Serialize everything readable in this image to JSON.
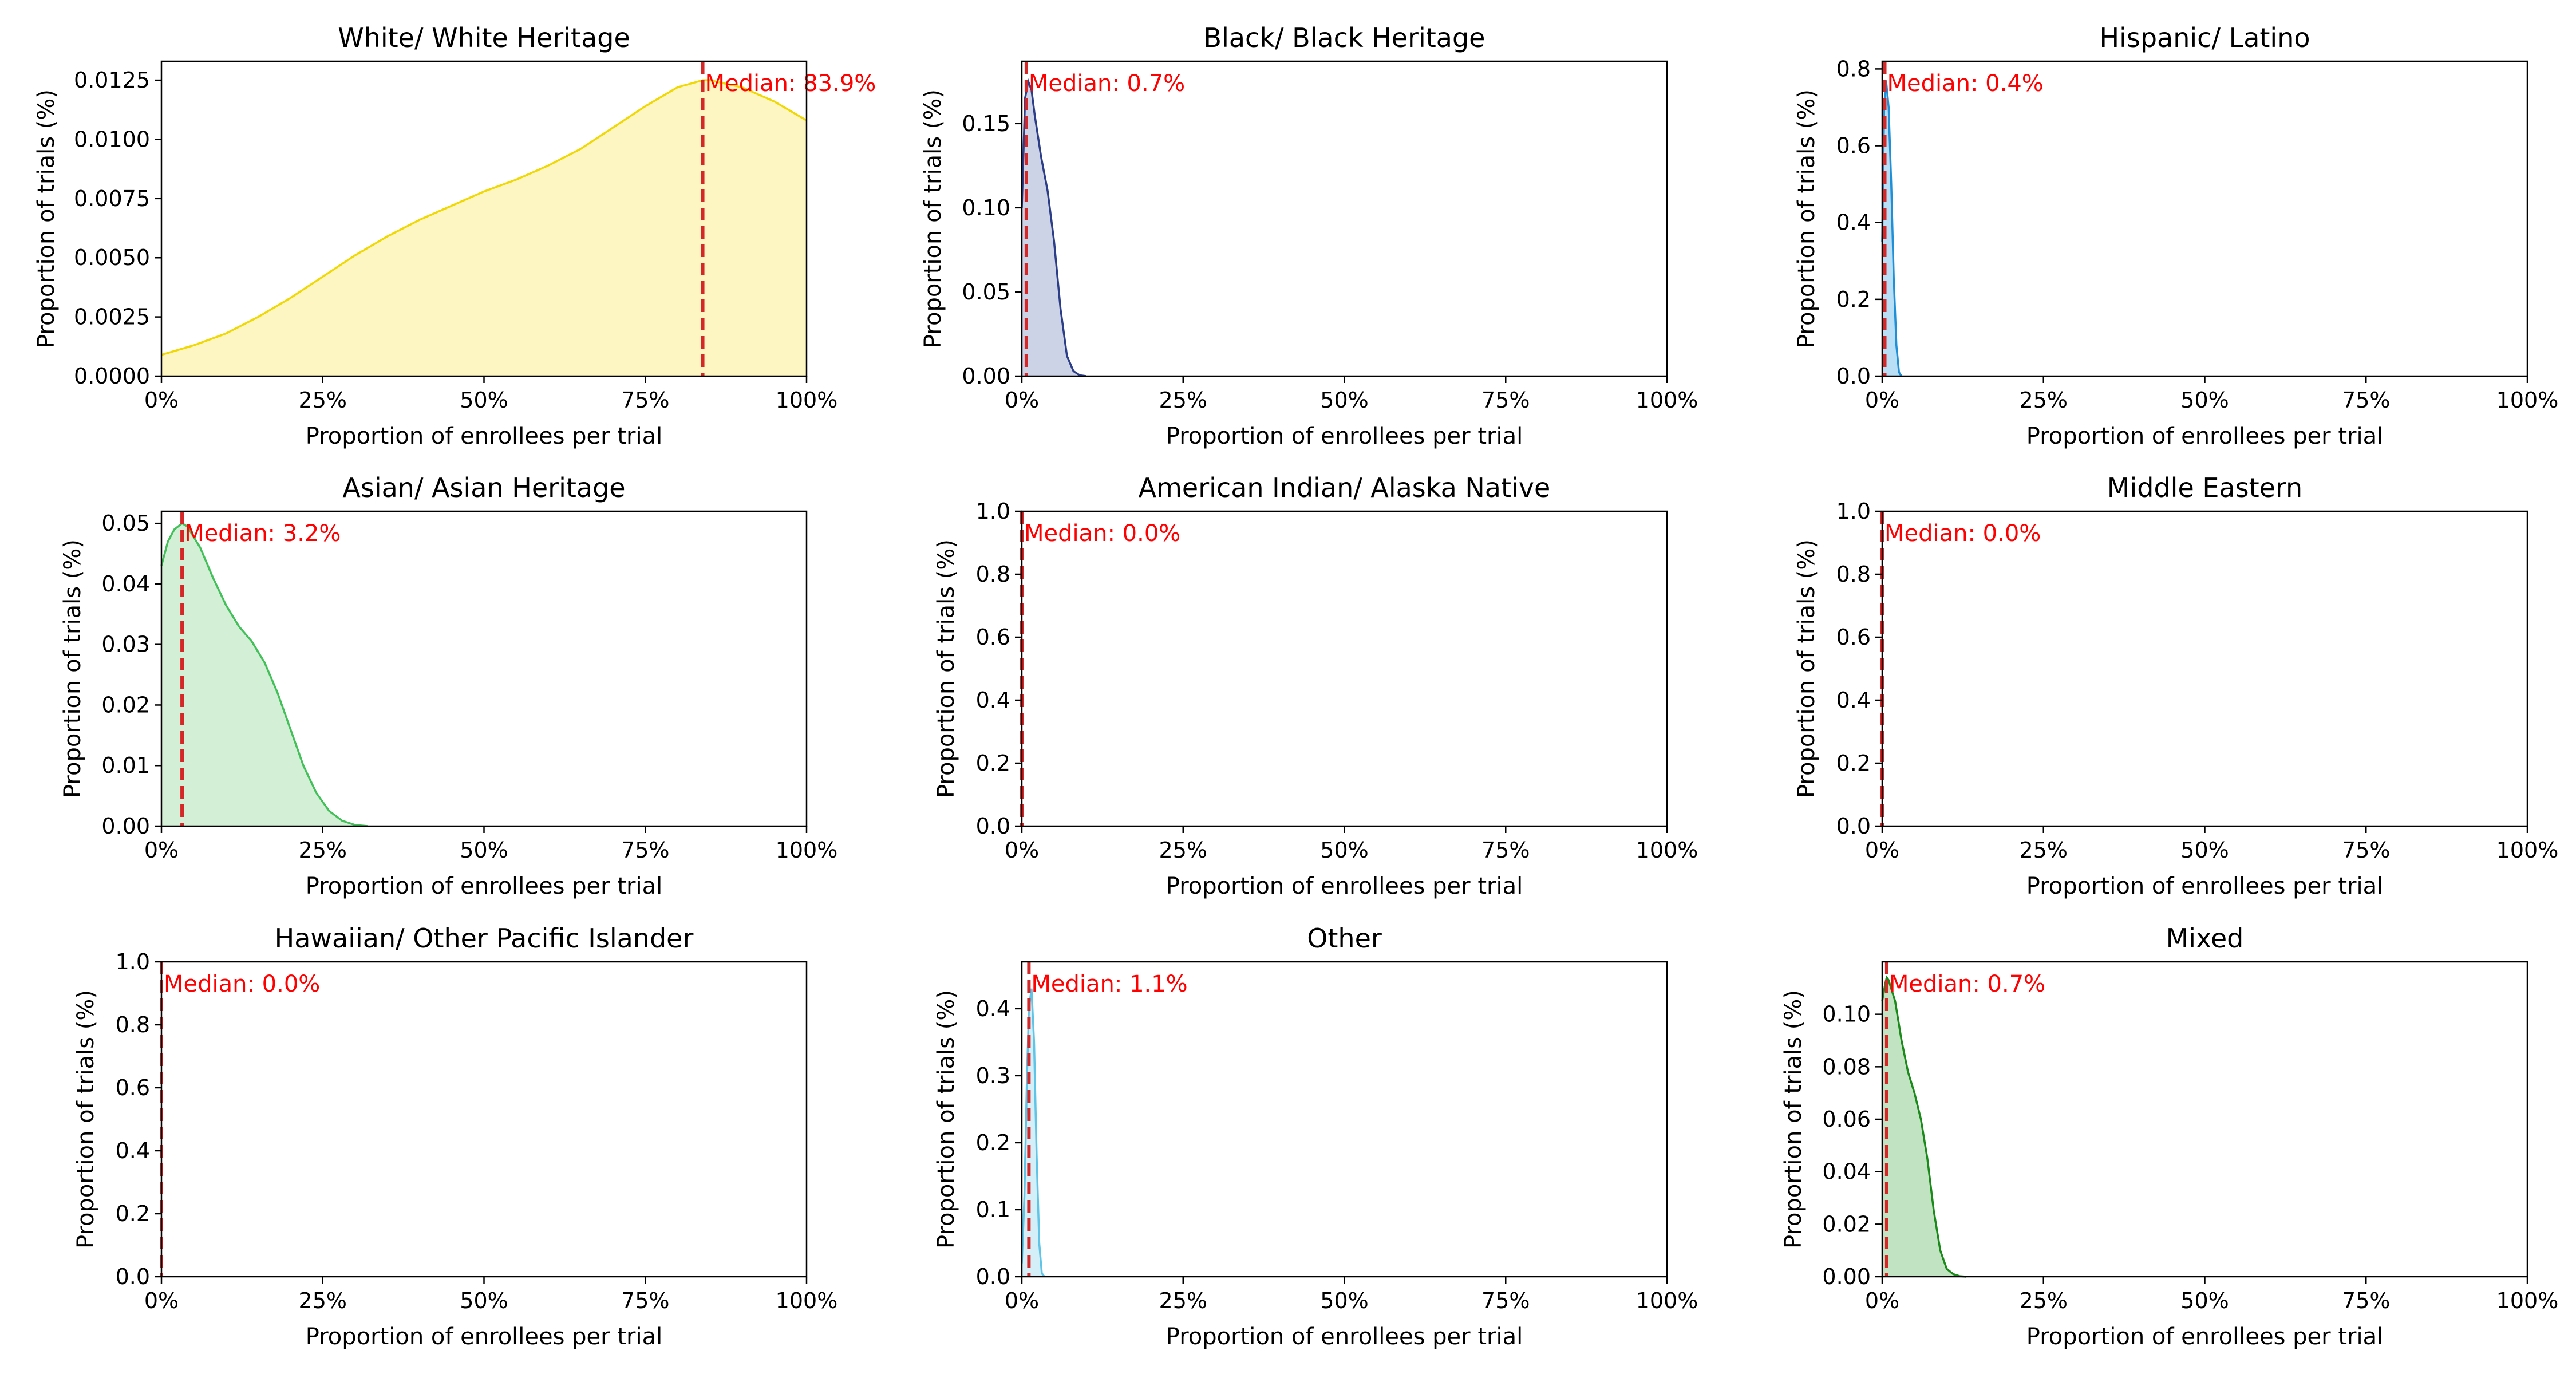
{
  "figure": {
    "xlabel": "Proportion of enrollees per trial",
    "ylabel": "Proportion of trials (%)",
    "xticks": [
      "0%",
      "25%",
      "50%",
      "75%",
      "100%"
    ]
  },
  "chart_data": [
    {
      "type": "area",
      "title": "White/ White Heritage",
      "color": "#f0d800",
      "fill": "#fdf6c3",
      "xlim": [
        0,
        100
      ],
      "ylim": [
        0,
        0.0133
      ],
      "yticks": [
        "0.0000",
        "0.0025",
        "0.0050",
        "0.0075",
        "0.0100",
        "0.0125"
      ],
      "ytick_values": [
        0,
        0.0025,
        0.005,
        0.0075,
        0.01,
        0.0125
      ],
      "median": 83.9,
      "median_label": "Median: 83.9%",
      "x": [
        0,
        5,
        10,
        15,
        20,
        25,
        30,
        35,
        40,
        45,
        50,
        55,
        60,
        65,
        70,
        75,
        80,
        83.9,
        85,
        90,
        95,
        100
      ],
      "y": [
        0.0009,
        0.0013,
        0.0018,
        0.0025,
        0.0033,
        0.0042,
        0.0051,
        0.0059,
        0.0066,
        0.0072,
        0.0078,
        0.0083,
        0.0089,
        0.0096,
        0.0105,
        0.0114,
        0.0122,
        0.0125,
        0.0125,
        0.0122,
        0.0116,
        0.0108
      ]
    },
    {
      "type": "area",
      "title": "Black/ Black Heritage",
      "color": "#2c3e87",
      "fill": "#cdd3e6",
      "xlim": [
        0,
        100
      ],
      "ylim": [
        0,
        0.187
      ],
      "yticks": [
        "0.00",
        "0.05",
        "0.10",
        "0.15"
      ],
      "ytick_values": [
        0,
        0.05,
        0.1,
        0.15
      ],
      "median": 0.7,
      "median_label": "Median: 0.7%",
      "x": [
        0,
        0.5,
        1,
        1.5,
        2,
        3,
        4,
        5,
        6,
        7,
        8,
        9,
        10
      ],
      "y": [
        0.1,
        0.165,
        0.175,
        0.17,
        0.155,
        0.13,
        0.11,
        0.08,
        0.04,
        0.012,
        0.003,
        0.0005,
        0
      ]
    },
    {
      "type": "area",
      "title": "Hispanic/ Latino",
      "color": "#1f8fd6",
      "fill": "#b8dff5",
      "xlim": [
        0,
        100
      ],
      "ylim": [
        0,
        0.82
      ],
      "yticks": [
        "0.0",
        "0.2",
        "0.4",
        "0.6",
        "0.8"
      ],
      "ytick_values": [
        0,
        0.2,
        0.4,
        0.6,
        0.8
      ],
      "median": 0.4,
      "median_label": "Median: 0.4%",
      "x": [
        0,
        0.3,
        0.6,
        1,
        1.4,
        1.8,
        2.2,
        2.6,
        3
      ],
      "y": [
        0.35,
        0.7,
        0.77,
        0.7,
        0.5,
        0.25,
        0.08,
        0.01,
        0
      ]
    },
    {
      "type": "area",
      "title": "Asian/ Asian Heritage",
      "color": "#44c05a",
      "fill": "#d3efd6",
      "xlim": [
        0,
        100
      ],
      "ylim": [
        0,
        0.052
      ],
      "yticks": [
        "0.00",
        "0.01",
        "0.02",
        "0.03",
        "0.04",
        "0.05"
      ],
      "ytick_values": [
        0,
        0.01,
        0.02,
        0.03,
        0.04,
        0.05
      ],
      "median": 3.2,
      "median_label": "Median: 3.2%",
      "x": [
        0,
        1,
        2,
        3.2,
        4,
        6,
        8,
        10,
        12,
        14,
        16,
        18,
        20,
        22,
        24,
        26,
        28,
        30,
        32
      ],
      "y": [
        0.043,
        0.047,
        0.049,
        0.05,
        0.0495,
        0.046,
        0.041,
        0.0365,
        0.033,
        0.0305,
        0.027,
        0.022,
        0.016,
        0.01,
        0.0055,
        0.0025,
        0.0009,
        0.0002,
        0
      ]
    },
    {
      "type": "area",
      "title": "American Indian/ Alaska Native",
      "color": "#d62728",
      "fill": "#f6c9c9",
      "xlim": [
        0,
        100
      ],
      "ylim": [
        0,
        1.0
      ],
      "yticks": [
        "0.0",
        "0.2",
        "0.4",
        "0.6",
        "0.8",
        "1.0"
      ],
      "ytick_values": [
        0,
        0.2,
        0.4,
        0.6,
        0.8,
        1.0
      ],
      "median": 0.0,
      "median_label": "Median: 0.0%",
      "x": [],
      "y": []
    },
    {
      "type": "area",
      "title": "Middle Eastern",
      "color": "#8c564b",
      "fill": "#e8d6d2",
      "xlim": [
        0,
        100
      ],
      "ylim": [
        0,
        1.0
      ],
      "yticks": [
        "0.0",
        "0.2",
        "0.4",
        "0.6",
        "0.8",
        "1.0"
      ],
      "ytick_values": [
        0,
        0.2,
        0.4,
        0.6,
        0.8,
        1.0
      ],
      "median": 0.0,
      "median_label": "Median: 0.0%",
      "x": [],
      "y": []
    },
    {
      "type": "area",
      "title": "Hawaiian/ Other Pacific Islander",
      "color": "#9467bd",
      "fill": "#e3d7ef",
      "xlim": [
        0,
        100
      ],
      "ylim": [
        0,
        1.0
      ],
      "yticks": [
        "0.0",
        "0.2",
        "0.4",
        "0.6",
        "0.8",
        "1.0"
      ],
      "ytick_values": [
        0,
        0.2,
        0.4,
        0.6,
        0.8,
        1.0
      ],
      "median": 0.0,
      "median_label": "Median: 0.0%",
      "x": [],
      "y": []
    },
    {
      "type": "area",
      "title": "Other",
      "color": "#5fc4e6",
      "fill": "#d4eff8",
      "xlim": [
        0,
        100
      ],
      "ylim": [
        0,
        0.47
      ],
      "yticks": [
        "0.0",
        "0.1",
        "0.2",
        "0.3",
        "0.4"
      ],
      "ytick_values": [
        0,
        0.1,
        0.2,
        0.3,
        0.4
      ],
      "median": 1.1,
      "median_label": "Median: 1.1%",
      "x": [
        0,
        0.4,
        0.8,
        1.1,
        1.5,
        1.9,
        2.3,
        2.7,
        3.1,
        3.5
      ],
      "y": [
        0.02,
        0.12,
        0.3,
        0.4,
        0.43,
        0.35,
        0.18,
        0.05,
        0.005,
        0
      ]
    },
    {
      "type": "area",
      "title": "Mixed",
      "color": "#1a8a1a",
      "fill": "#c2e3c2",
      "xlim": [
        0,
        100
      ],
      "ylim": [
        0,
        0.12
      ],
      "yticks": [
        "0.00",
        "0.02",
        "0.04",
        "0.06",
        "0.08",
        "0.10"
      ],
      "ytick_values": [
        0,
        0.02,
        0.04,
        0.06,
        0.08,
        0.1
      ],
      "median": 0.7,
      "median_label": "Median: 0.7%",
      "x": [
        0,
        0.5,
        0.7,
        1,
        2,
        3,
        4,
        5,
        6,
        7,
        8,
        9,
        10,
        11,
        12,
        13
      ],
      "y": [
        0.105,
        0.112,
        0.114,
        0.113,
        0.105,
        0.09,
        0.078,
        0.07,
        0.06,
        0.045,
        0.025,
        0.01,
        0.003,
        0.001,
        0.0002,
        0
      ]
    }
  ]
}
